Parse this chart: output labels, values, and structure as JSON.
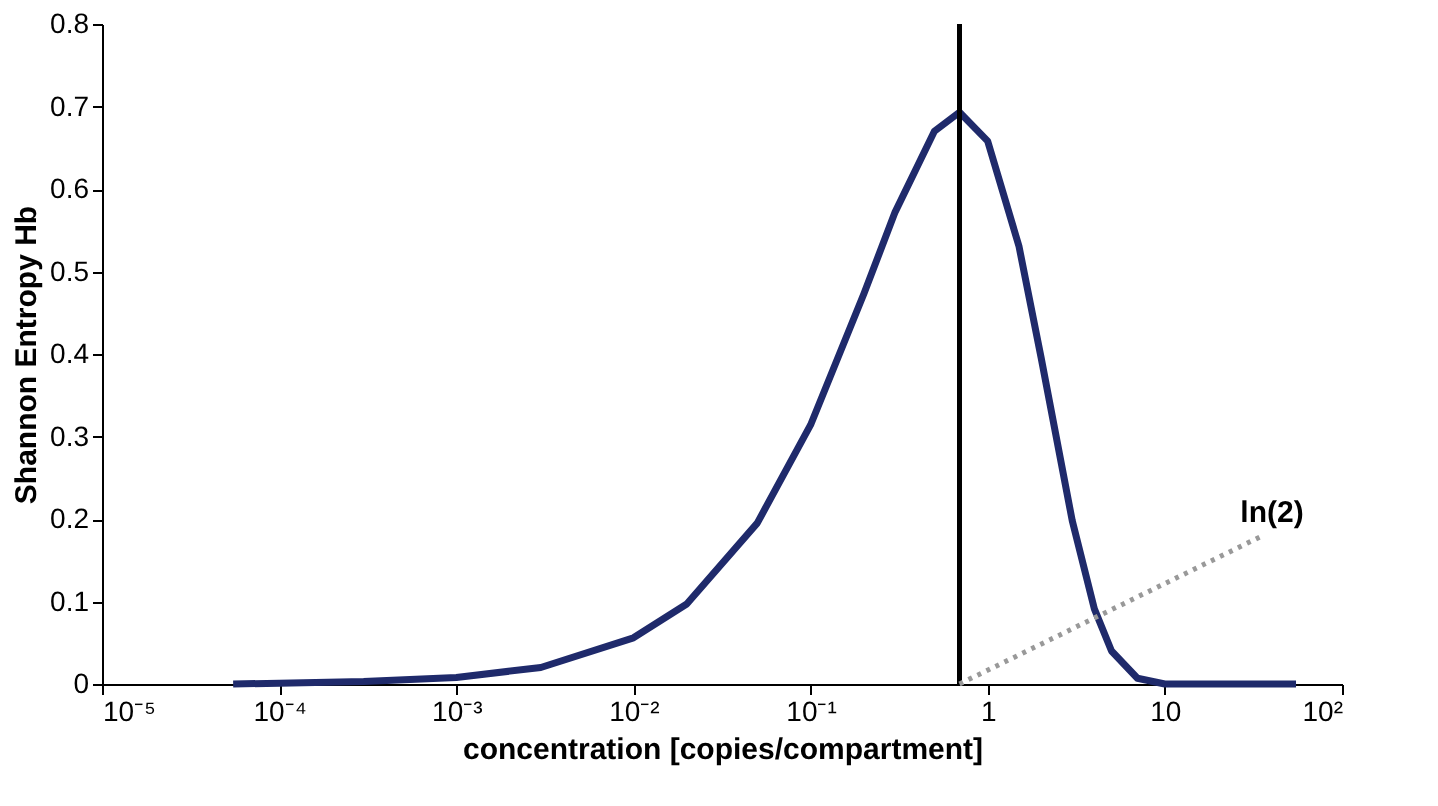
{
  "chart_data": {
    "type": "line",
    "xlabel": "concentration [copies/compartment]",
    "ylabel": "Shannon Entropy Hb",
    "x": [
      5.5e-05,
      0.0001,
      0.0003,
      0.001,
      0.003,
      0.01,
      0.02,
      0.05,
      0.1,
      0.2,
      0.3,
      0.5,
      0.693,
      1,
      1.5,
      2,
      3,
      4,
      5,
      7,
      10,
      20,
      55
    ],
    "series": [
      {
        "color": "#1f2a6b",
        "values": [
          0,
          0.001,
          0.003,
          0.008,
          0.02,
          0.056,
          0.097,
          0.195,
          0.314,
          0.473,
          0.572,
          0.67,
          0.693,
          0.658,
          0.531,
          0.396,
          0.198,
          0.091,
          0.04,
          0.007,
          0,
          0,
          0
        ]
      }
    ],
    "log": "x",
    "xlim": [
      1e-05,
      100
    ],
    "xticks": [
      {
        "value": 1e-05,
        "label": "10⁻⁵"
      },
      {
        "value": 0.0001,
        "label": "10⁻⁴"
      },
      {
        "value": 0.001,
        "label": "10⁻³"
      },
      {
        "value": 0.01,
        "label": "10⁻²"
      },
      {
        "value": 0.1,
        "label": "10⁻¹"
      },
      1,
      10,
      {
        "value": 100,
        "label": "10²"
      }
    ],
    "ylim": [
      0,
      0.8
    ],
    "yticks": [
      0,
      0.1,
      0.2,
      0.3,
      0.4,
      0.5,
      0.6,
      0.7,
      0.8
    ],
    "ref_lines": [
      {
        "axis": "x",
        "value": 0.693,
        "color": "#000000",
        "line_style": "solid"
      }
    ],
    "annotations": [
      {
        "text": "ln(2)",
        "x": 0.693,
        "y": 0
      }
    ],
    "grid": false,
    "marker": "none",
    "line_style": "solid"
  }
}
